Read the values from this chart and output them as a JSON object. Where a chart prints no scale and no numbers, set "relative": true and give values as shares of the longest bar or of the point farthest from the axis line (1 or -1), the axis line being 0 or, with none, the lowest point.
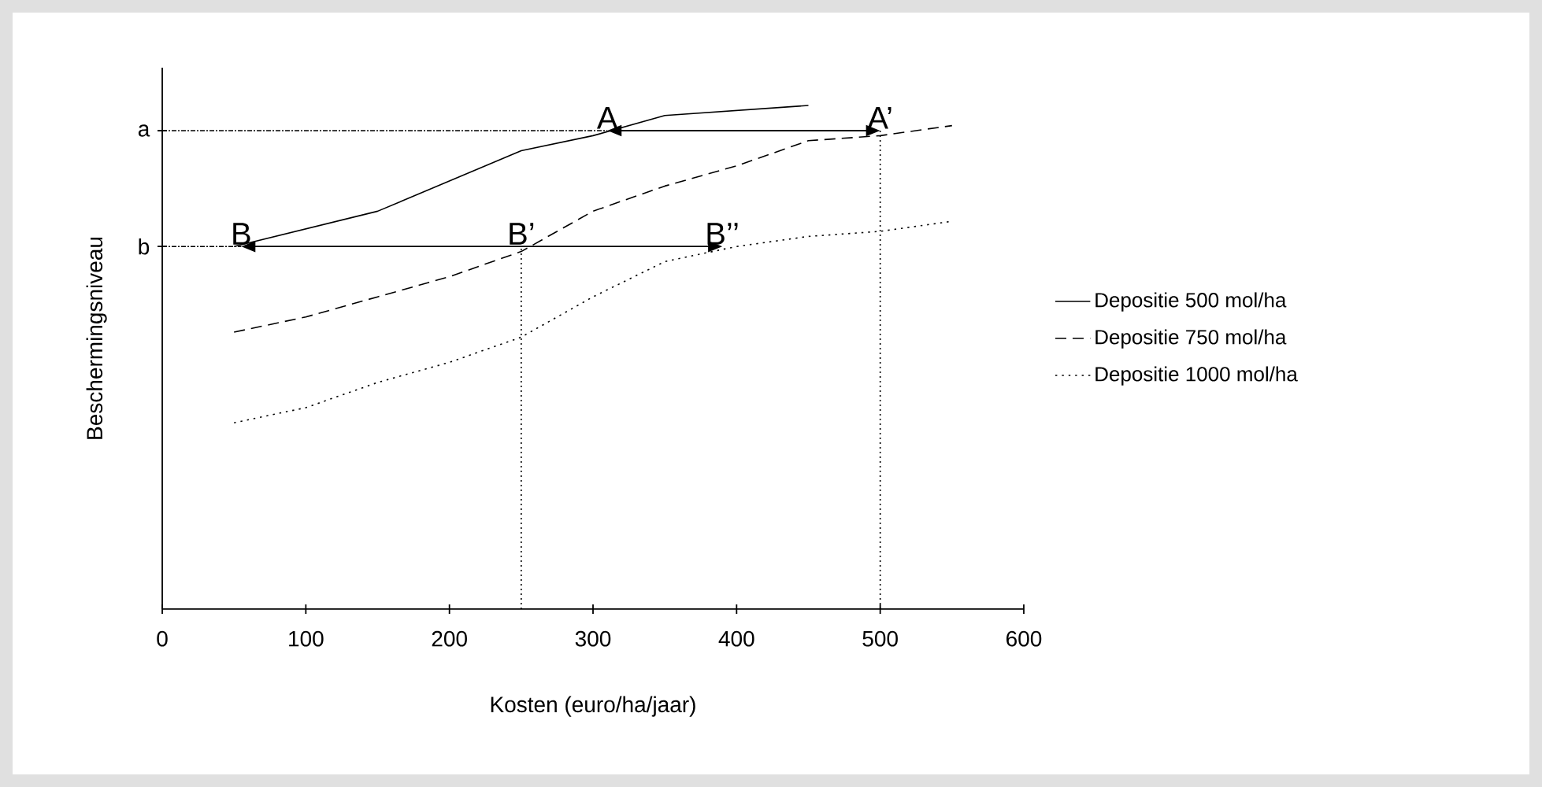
{
  "chart_data": {
    "type": "line",
    "relative": true,
    "xlabel": "Kosten (euro/ha/jaar)",
    "ylabel": "Beschermingsniveau",
    "xlim": [
      0,
      600
    ],
    "xticks": [
      0,
      100,
      200,
      300,
      400,
      500,
      600
    ],
    "legend": "right",
    "grid": false,
    "marker": "none",
    "series": [
      {
        "name": "Depositie 500 mol/ha",
        "color": "#000000",
        "line_style": "solid",
        "x": [
          50,
          150,
          250,
          300,
          350,
          450
        ],
        "values": [
          0.72,
          0.79,
          0.91,
          0.94,
          0.98,
          1
        ]
      },
      {
        "name": "Depositie 750 mol/ha",
        "color": "#000000",
        "line_style": "dashed",
        "x": [
          50,
          100,
          150,
          200,
          250,
          300,
          350,
          400,
          450,
          500,
          550
        ],
        "values": [
          0.55,
          0.58,
          0.62,
          0.66,
          0.71,
          0.79,
          0.84,
          0.88,
          0.93,
          0.94,
          0.96
        ]
      },
      {
        "name": "Depositie 1000 mol/ha",
        "color": "#000000",
        "line_style": "dotted",
        "x": [
          50,
          100,
          150,
          200,
          250,
          300,
          350,
          400,
          450,
          500,
          550
        ],
        "values": [
          0.37,
          0.4,
          0.45,
          0.49,
          0.54,
          0.62,
          0.69,
          0.72,
          0.74,
          0.75,
          0.77
        ]
      }
    ],
    "ref_lines": [
      {
        "axis": "y",
        "value": 0.95,
        "label": "a",
        "line_style": "dashed"
      },
      {
        "axis": "y",
        "value": 0.72,
        "label": "b",
        "line_style": "dashed"
      },
      {
        "axis": "x",
        "value": 250,
        "line_style": "dotted"
      },
      {
        "axis": "x",
        "value": 500,
        "line_style": "dotted"
      }
    ],
    "annotations": [
      {
        "text": "A",
        "x": 310,
        "y": 0.95
      },
      {
        "text": "A’",
        "x": 500,
        "y": 0.95
      },
      {
        "text": "B",
        "x": 55,
        "y": 0.72
      },
      {
        "text": "B’",
        "x": 250,
        "y": 0.72
      },
      {
        "text": "B’’",
        "x": 390,
        "y": 0.72
      }
    ]
  }
}
